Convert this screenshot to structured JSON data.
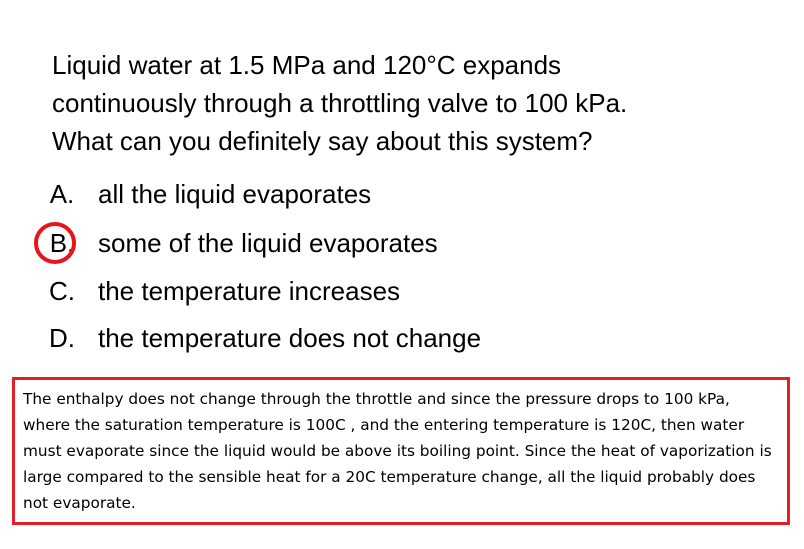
{
  "question": {
    "lines": [
      "Liquid water at 1.5 MPa and 120°C expands",
      "continuously through a throttling valve to 100 kPa.",
      "What can you definitely say about this system?"
    ]
  },
  "options": [
    {
      "letter": "A.",
      "text": "all the liquid evaporates",
      "selected": false
    },
    {
      "letter": "B.",
      "text": "some of the liquid evaporates",
      "selected": true
    },
    {
      "letter": "C.",
      "text": "the temperature increases",
      "selected": false
    },
    {
      "letter": "D.",
      "text": "the temperature does not change",
      "selected": false
    }
  ],
  "selection_color": "#e8141c",
  "explanation": {
    "text": "The enthalpy does not change through the throttle and since the pressure drops to 100 kPa, where the saturation temperature is 100C , and the entering temperature is 120C, then water must evaporate since the liquid would be above its boiling point. Since the heat of vaporization is large compared to the sensible heat for a 20C temperature change, all the liquid probably does not evaporate.",
    "border_color": "#e41e26"
  }
}
